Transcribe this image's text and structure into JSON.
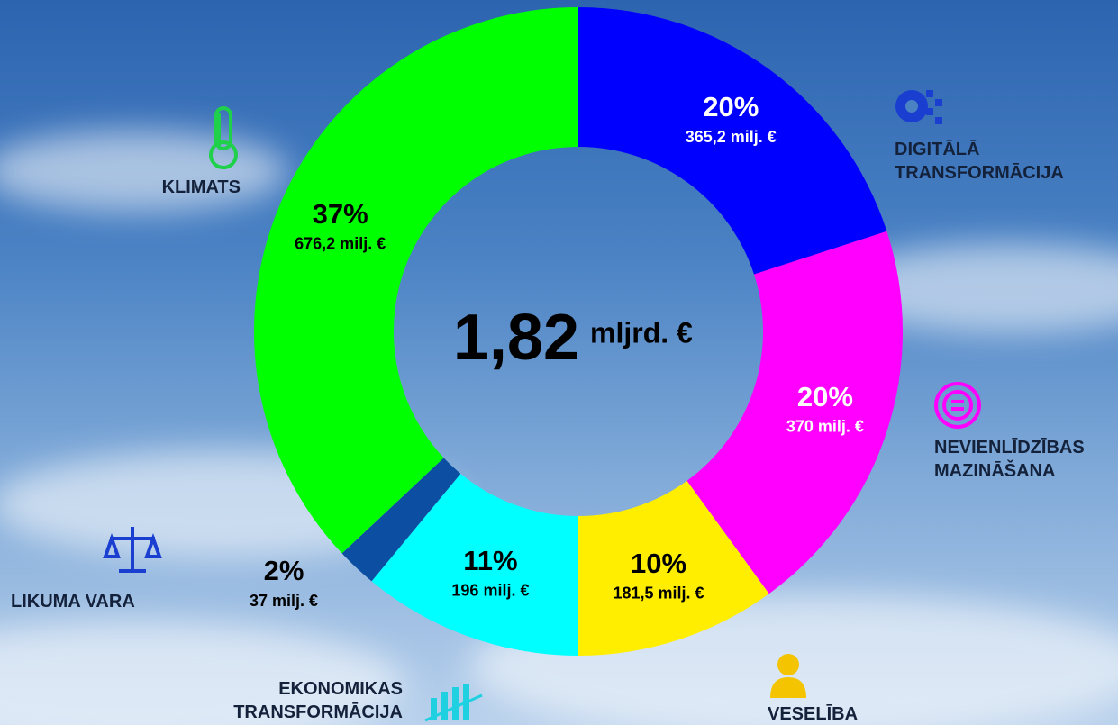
{
  "chart_data": {
    "type": "donut",
    "center_value": "1,82",
    "center_unit": "mljrd. €",
    "categories": [
      "DIGITĀLĀ TRANSFORMĀCIJA",
      "NEVIENLĪDZĪBAS MAZINĀŠANA",
      "VESELĪBA",
      "EKONOMIKAS TRANSFORMĀCIJA",
      "LIKUMA VARA",
      "KLIMATS"
    ],
    "values": [
      20,
      20,
      10,
      11,
      2,
      37
    ],
    "value_labels": [
      "20%",
      "20%",
      "10%",
      "11%",
      "2%",
      "37%"
    ],
    "amounts": [
      "365,2 milj. €",
      "370 milj. €",
      "181,5 milj. €",
      "196 milj. €",
      "37 milj. €",
      "676,2 milj. €"
    ],
    "colors": [
      "#0000ff",
      "#ff00ff",
      "#ffee00",
      "#00ffff",
      "#0b4ea2",
      "#00ff00"
    ],
    "label_colors": [
      "#ffffff",
      "#ffffff",
      "#000000",
      "#000000",
      "#000000",
      "#000000"
    ]
  }
}
